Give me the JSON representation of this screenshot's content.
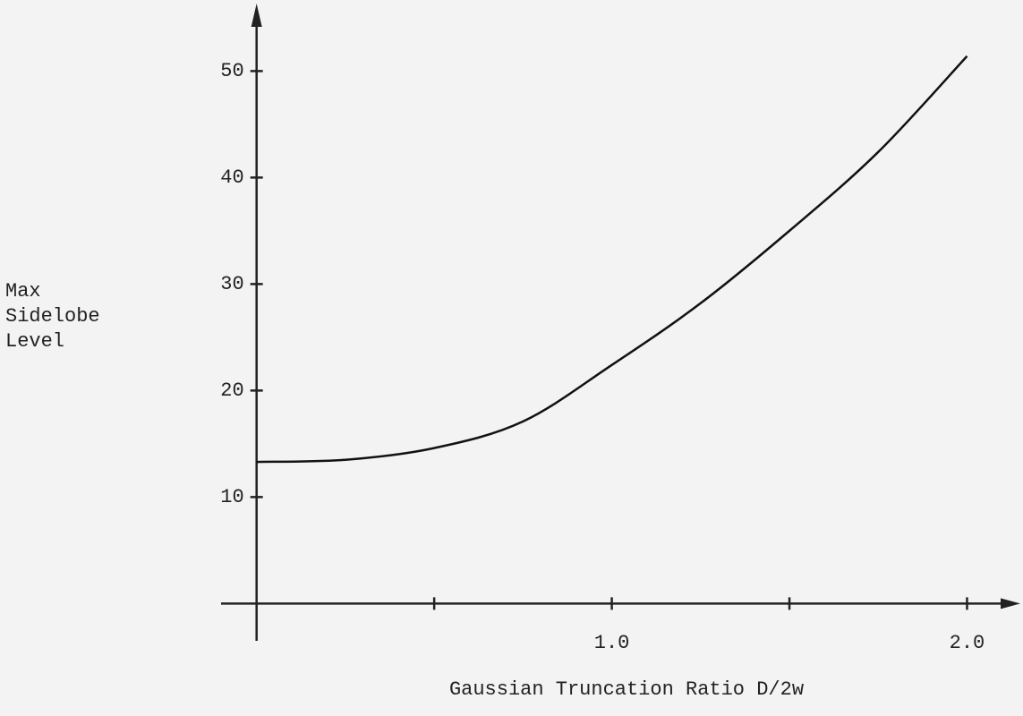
{
  "chart_data": {
    "type": "line",
    "xlabel": "Gaussian Truncation Ratio D/2w",
    "ylabel": [
      "Max",
      "Sidelobe",
      "Level"
    ],
    "x": [
      0,
      0.25,
      0.5,
      0.75,
      1.0,
      1.25,
      1.5,
      1.75,
      2.0
    ],
    "series": [
      {
        "color": "#111111",
        "values": [
          13.3,
          13.5,
          14.6,
          17.1,
          22.4,
          28.2,
          35.0,
          42.4,
          51.4
        ]
      }
    ],
    "xlim": [
      -0.1,
      2.15
    ],
    "ylim": [
      -3.5,
      56
    ],
    "xticks": [
      {
        "value": 1.0,
        "label": "1.0"
      },
      {
        "value": 2.0,
        "label": "2.0"
      }
    ],
    "xminor_ticks": [
      0.5,
      1.5
    ],
    "yticks": [
      10,
      20,
      30,
      40,
      50
    ],
    "grid": false
  }
}
